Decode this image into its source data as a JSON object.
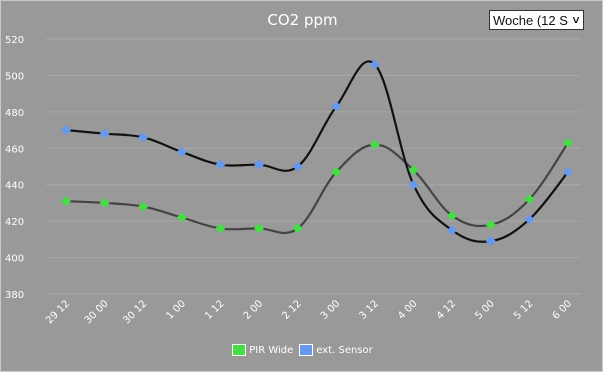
{
  "chart_data": {
    "type": "line",
    "title": "CO2 ppm",
    "categories": [
      "29 12",
      "30 00",
      "30 12",
      "1 00",
      "1 12",
      "2 00",
      "2 12",
      "3 00",
      "3 12",
      "4 00",
      "4 12",
      "5 00",
      "5 12",
      "6 00"
    ],
    "ylim": [
      380,
      520
    ],
    "yticks": [
      "380",
      "400",
      "420",
      "440",
      "460",
      "480",
      "500",
      "520"
    ],
    "series": [
      {
        "name": "PIR Wide",
        "color": "#44dd44",
        "line_color": "#444444",
        "values": [
          431,
          430,
          428,
          422,
          416,
          416,
          416,
          447,
          462,
          448,
          423,
          418,
          432,
          463
        ]
      },
      {
        "name": "ext. Sensor",
        "color": "#6699ee",
        "line_color": "#111111",
        "values": [
          470,
          468,
          466,
          458,
          451,
          451,
          450,
          483,
          506,
          440,
          415,
          409,
          421,
          447
        ]
      }
    ],
    "grid": true,
    "legend_position": "bottom-center"
  },
  "controls": {
    "range_value": "Woche (12 S"
  },
  "icons": {
    "dropdown": "chevron-down-icon"
  }
}
